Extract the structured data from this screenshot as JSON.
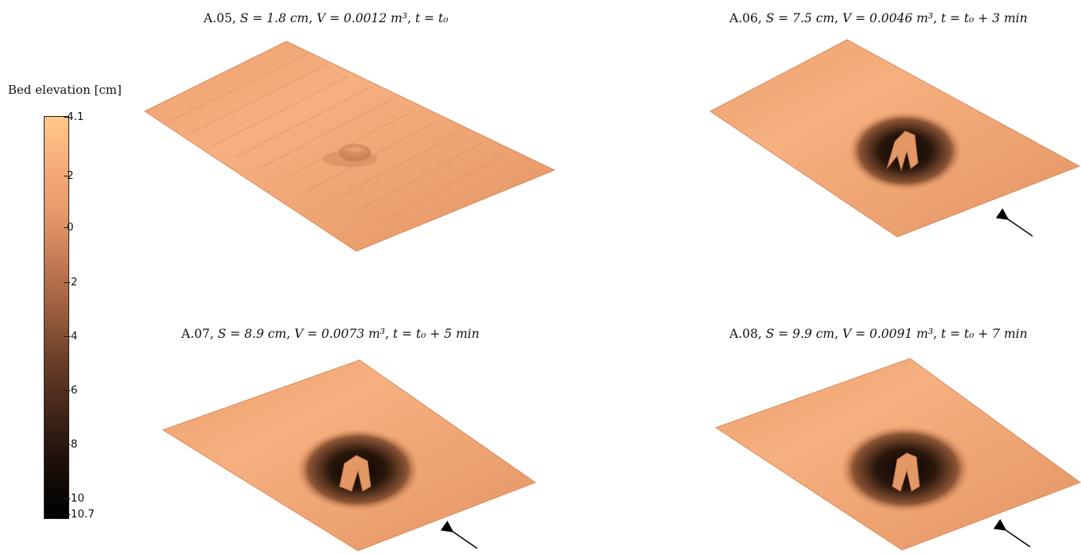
{
  "colorbar": {
    "title": "Bed elevation [cm]",
    "ticks": [
      "4.1",
      "2",
      "0",
      "-2",
      "-4",
      "-6",
      "-8",
      "-10",
      "-10.7"
    ],
    "range": [
      -10.7,
      4.1
    ]
  },
  "panels": [
    {
      "id": "A.05",
      "s_label": "S = 1.8 cm",
      "v_label": "V = 0.0012 m³",
      "t_label": "t = t₀",
      "arrow": false
    },
    {
      "id": "A.06",
      "s_label": "S = 7.5 cm",
      "v_label": "V = 0.0046 m³",
      "t_label": "t = t₀ + 3 min",
      "arrow": true
    },
    {
      "id": "A.07",
      "s_label": "S = 8.9 cm",
      "v_label": "V = 0.0073 m³",
      "t_label": "t = t₀ + 5 min",
      "arrow": true
    },
    {
      "id": "A.08",
      "s_label": "S = 9.9 cm",
      "v_label": "V = 0.0091 m³",
      "t_label": "t = t₀ + 7 min",
      "arrow": true
    }
  ],
  "colors": {
    "bed_light": "#f2a677",
    "bed_mid": "#e59767",
    "scour_dark": "#1a0d06",
    "arrow": "#000000"
  }
}
